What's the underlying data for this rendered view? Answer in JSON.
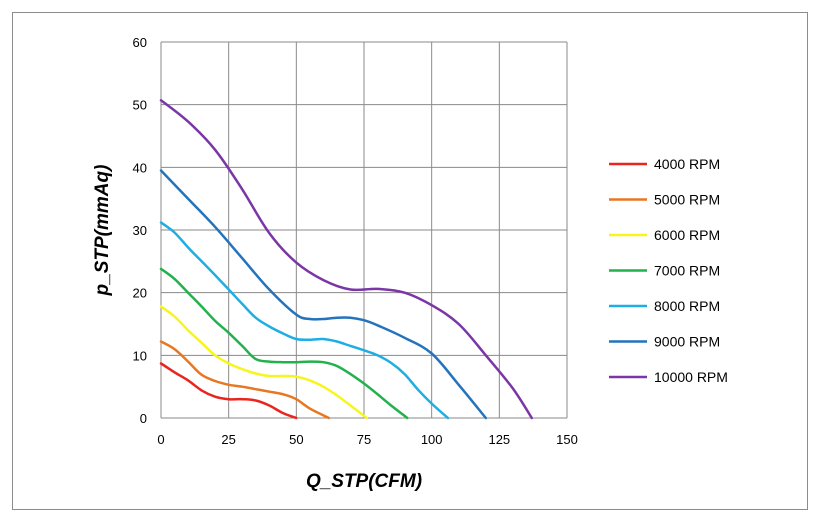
{
  "chart_data": {
    "type": "line",
    "title": "",
    "xlabel": "Q_STP(CFM)",
    "ylabel": "p_STP(mmAq)",
    "xlim": [
      0,
      150
    ],
    "ylim": [
      0,
      60
    ],
    "xticks": [
      0,
      25,
      50,
      75,
      100,
      125,
      150
    ],
    "yticks": [
      0,
      10,
      20,
      30,
      40,
      50,
      60
    ],
    "grid": true,
    "legend_position": "right",
    "series": [
      {
        "name": "4000 RPM",
        "color": "#e8251f",
        "x": [
          0,
          5,
          10,
          15,
          20,
          25,
          30,
          35,
          40,
          45,
          50
        ],
        "y": [
          8.7,
          7.3,
          6.0,
          4.4,
          3.4,
          3.0,
          3.0,
          2.8,
          2.0,
          0.8,
          0
        ]
      },
      {
        "name": "5000 RPM",
        "color": "#e87722",
        "x": [
          0,
          5,
          10,
          15,
          20,
          25,
          30,
          35,
          40,
          45,
          50,
          55,
          62
        ],
        "y": [
          12.2,
          11.0,
          9.0,
          6.9,
          5.9,
          5.3,
          5.0,
          4.6,
          4.2,
          3.8,
          3.0,
          1.5,
          0
        ]
      },
      {
        "name": "6000 RPM",
        "color": "#f7f51e",
        "x": [
          0,
          5,
          10,
          15,
          20,
          25,
          30,
          35,
          40,
          45,
          50,
          55,
          60,
          65,
          70,
          76
        ],
        "y": [
          17.8,
          16.2,
          14.0,
          12.0,
          10.0,
          8.7,
          7.8,
          7.1,
          6.7,
          6.7,
          6.6,
          6.0,
          5.0,
          3.6,
          2.0,
          0
        ]
      },
      {
        "name": "7000 RPM",
        "color": "#23b14d",
        "x": [
          0,
          5,
          10,
          15,
          20,
          25,
          30,
          35,
          40,
          45,
          50,
          55,
          60,
          65,
          70,
          75,
          80,
          85,
          91
        ],
        "y": [
          23.8,
          22.2,
          20.0,
          17.8,
          15.5,
          13.6,
          11.5,
          9.4,
          9.0,
          8.9,
          8.9,
          9.0,
          8.9,
          8.3,
          7.0,
          5.5,
          3.8,
          2.0,
          0
        ]
      },
      {
        "name": "8000 RPM",
        "color": "#1eaee4",
        "x": [
          0,
          5,
          10,
          15,
          20,
          25,
          30,
          35,
          40,
          45,
          50,
          55,
          60,
          65,
          70,
          75,
          80,
          85,
          90,
          95,
          100,
          106
        ],
        "y": [
          31.2,
          29.6,
          27.2,
          25.0,
          22.8,
          20.5,
          18.2,
          16.0,
          14.6,
          13.5,
          12.6,
          12.5,
          12.6,
          12.2,
          11.5,
          10.8,
          10.0,
          8.8,
          7.0,
          4.5,
          2.3,
          0
        ]
      },
      {
        "name": "9000 RPM",
        "color": "#2373bd",
        "x": [
          0,
          10,
          20,
          30,
          40,
          50,
          55,
          60,
          65,
          70,
          75,
          80,
          90,
          100,
          110,
          120
        ],
        "y": [
          39.5,
          35.0,
          30.5,
          25.5,
          20.5,
          16.5,
          15.8,
          15.8,
          16.0,
          16.0,
          15.6,
          14.8,
          12.8,
          10.3,
          5.3,
          0
        ]
      },
      {
        "name": "10000 RPM",
        "color": "#7a36a6",
        "x": [
          0,
          10,
          20,
          30,
          40,
          50,
          60,
          70,
          80,
          90,
          100,
          110,
          120,
          130,
          137
        ],
        "y": [
          50.7,
          47.3,
          42.8,
          36.5,
          29.5,
          24.8,
          22.0,
          20.5,
          20.6,
          20.0,
          18.0,
          15.0,
          10.0,
          4.7,
          0
        ]
      }
    ]
  }
}
